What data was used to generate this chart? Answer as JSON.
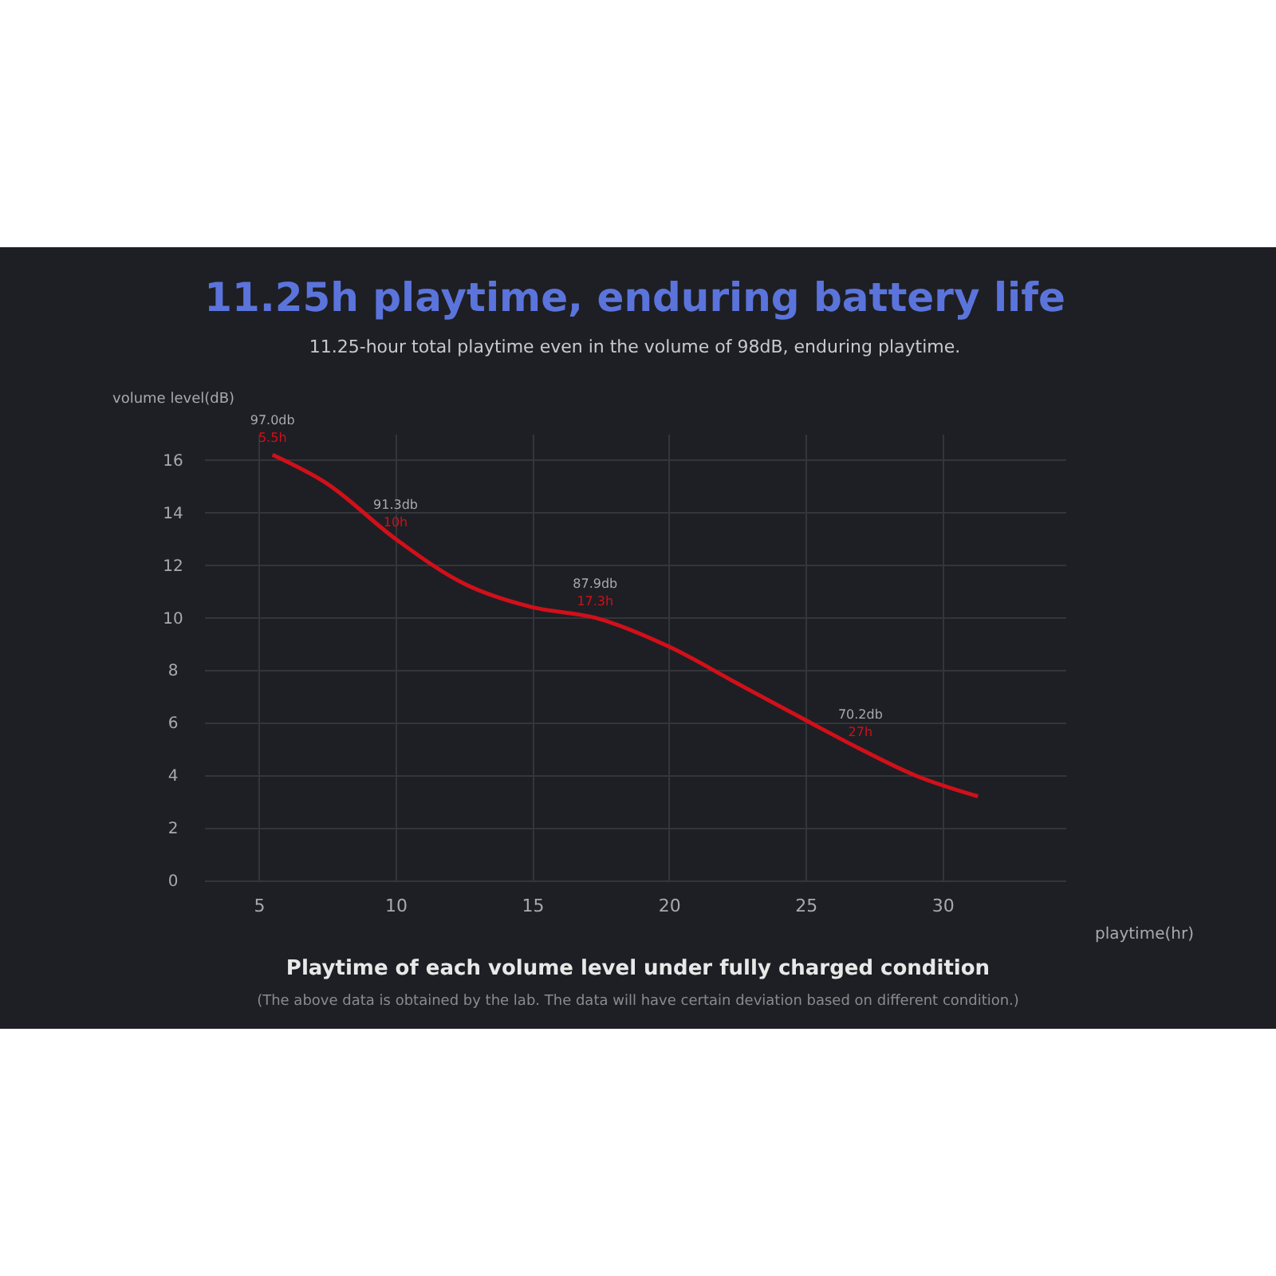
{
  "chart_data": {
    "type": "line",
    "title": "11.25h playtime, enduring battery life",
    "subtitle": "11.25-hour total playtime even in the volume of 98dB, enduring playtime.",
    "xlabel": "playtime(hr)",
    "ylabel": "volume level(dB)",
    "x": [
      5.5,
      7.5,
      10,
      12.5,
      15,
      17.3,
      20,
      22.5,
      25,
      27,
      29,
      31.3
    ],
    "series": [
      {
        "color": "#d0101a",
        "values": [
          16.2,
          15.1,
          13,
          11.3,
          10.4,
          10,
          8.9,
          7.5,
          6.1,
          5,
          4,
          3.2
        ]
      }
    ],
    "xlim": [
      3,
      34.5
    ],
    "xticks": [
      5,
      10,
      15,
      20,
      25,
      30
    ],
    "ylim": [
      0,
      17
    ],
    "yticks": [
      0,
      2,
      4,
      6,
      8,
      10,
      12,
      14,
      16
    ],
    "grid": true,
    "annotations": [
      {
        "text": "97.0db",
        "x": 5.5,
        "y": 16.2
      },
      {
        "text": "5.5h",
        "x": 5.5,
        "y": 16.2
      },
      {
        "text": "91.3db",
        "x": 10,
        "y": 13
      },
      {
        "text": "10h",
        "x": 10,
        "y": 13
      },
      {
        "text": "87.9db",
        "x": 17.3,
        "y": 10
      },
      {
        "text": "17.3h",
        "x": 17.3,
        "y": 10
      },
      {
        "text": "70.2db",
        "x": 27,
        "y": 5
      },
      {
        "text": "27h",
        "x": 27,
        "y": 5
      },
      "Playtime of each volume level under fully charged condition",
      "(The above data is obtained by the lab. The data  will have certain deviation based on different condition.)"
    ]
  }
}
